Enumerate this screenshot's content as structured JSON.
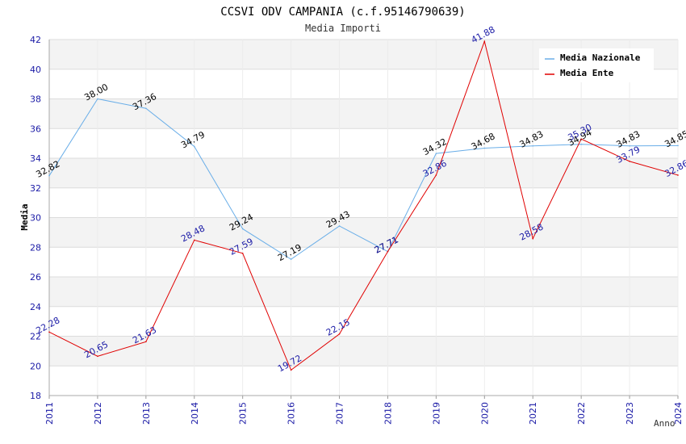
{
  "chart_data": {
    "type": "line",
    "title": "CCSVI ODV CAMPANIA (c.f.95146790639)",
    "subtitle": "Media Importi",
    "xlabel": "Anno",
    "ylabel": "Media",
    "ylim": [
      18,
      42
    ],
    "yticks": [
      18,
      20,
      22,
      24,
      26,
      28,
      30,
      32,
      34,
      36,
      38,
      40,
      42
    ],
    "grid": true,
    "legend_position": "top-right",
    "categories": [
      "2011",
      "2012",
      "2013",
      "2014",
      "2015",
      "2016",
      "2017",
      "2018",
      "2019",
      "2020",
      "2021",
      "2022",
      "2023",
      "2024"
    ],
    "series": [
      {
        "name": "Media Nazionale",
        "color": "#6aaee8",
        "values": [
          32.82,
          38.0,
          37.36,
          34.79,
          29.24,
          27.19,
          29.43,
          27.71,
          34.32,
          34.68,
          34.83,
          34.94,
          34.83,
          34.85
        ],
        "labels": [
          "32.82",
          "38.00",
          "37.36",
          "34.79",
          "29.24",
          "27.19",
          "29.43",
          "27.71",
          "34.32",
          "34.68",
          "34.83",
          "34.94",
          "34.83",
          "34.85"
        ]
      },
      {
        "name": "Media Ente",
        "color": "#e00000",
        "values": [
          22.28,
          20.65,
          21.63,
          28.48,
          27.59,
          19.72,
          22.15,
          27.71,
          32.86,
          41.88,
          28.58,
          35.3,
          33.79,
          32.86
        ],
        "labels": [
          "22.28",
          "20.65",
          "21.63",
          "28.48",
          "27.59",
          "19.72",
          "22.15",
          "27.71",
          "32.86",
          "41.88",
          "28.58",
          "35.30",
          "33.79",
          "32.86"
        ]
      }
    ]
  }
}
